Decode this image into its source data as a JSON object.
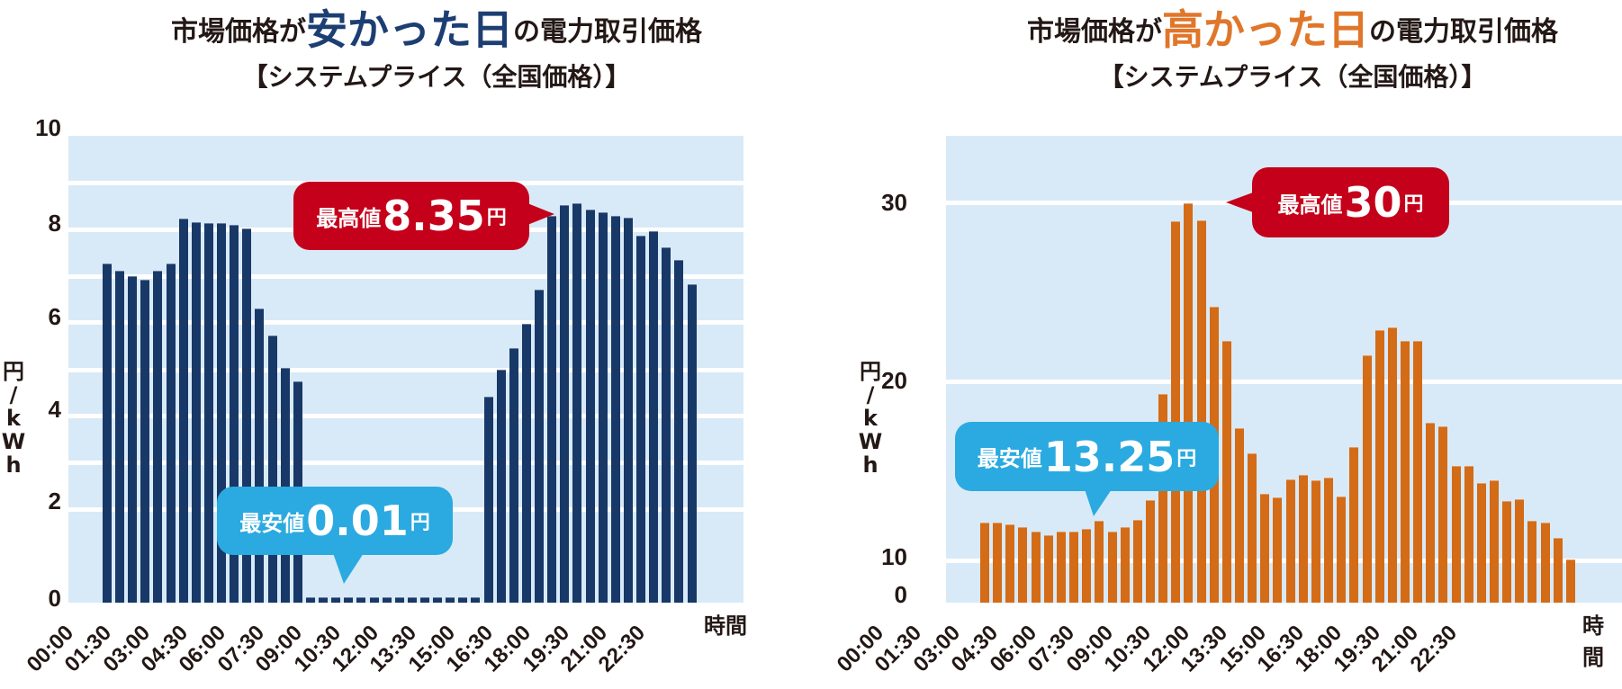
{
  "colors": {
    "plot_bg": "#d8eaf8",
    "grid": "#ffffff",
    "low_bar": "#183867",
    "high_bar": "#d36b17",
    "title_low_accent": "#1d3e72",
    "title_high_accent": "#e0762a",
    "max_bubble": "#c4001a",
    "min_bubble": "#2aaae0",
    "text": "#231815"
  },
  "left": {
    "title_prefix": "市場価格が",
    "title_accent": "安かった日",
    "title_suffix": "の電力取引価格",
    "subtitle": "【システムプライス（全国価格）】",
    "y_unit": [
      "円",
      "/",
      "k",
      "W",
      "h"
    ],
    "x_unit": "時間",
    "max_bubble": {
      "label": "最高値",
      "value": "8.35",
      "unit": "円"
    },
    "min_bubble": {
      "label": "最安値",
      "value": "0.01",
      "unit": "円"
    }
  },
  "right": {
    "title_prefix": "市場価格が",
    "title_accent": "高かった日",
    "title_suffix": "の電力取引価格",
    "subtitle": "【システムプライス（全国価格）】",
    "y_unit": [
      "円",
      "/",
      "k",
      "W",
      "h"
    ],
    "x_unit": "時間",
    "max_bubble": {
      "label": "最高値",
      "value": "30",
      "unit": "円"
    },
    "min_bubble": {
      "label": "最安値",
      "value": "13.25",
      "unit": "円"
    }
  },
  "chart_data": [
    {
      "type": "bar",
      "title": "市場価格が安かった日の電力取引価格【システムプライス（全国価格）】",
      "xlabel": "時間",
      "ylabel": "円/kWh",
      "ylim": [
        0,
        10
      ],
      "yticks": [
        0,
        2,
        4,
        6,
        8,
        10
      ],
      "grid": true,
      "xtick_labels": [
        "00:00",
        "01:30",
        "03:00",
        "04:30",
        "06:00",
        "07:30",
        "09:00",
        "10:30",
        "12:00",
        "13:30",
        "15:00",
        "16:30",
        "18:00",
        "19:30",
        "21:00",
        "22:30"
      ],
      "annotations": [
        {
          "text": "最高値8.35円",
          "value": 8.35
        },
        {
          "text": "最安値0.01円",
          "value": 0.01
        }
      ],
      "values": [
        7.08,
        6.94,
        6.82,
        6.75,
        6.93,
        7.08,
        8.02,
        7.95,
        7.93,
        7.93,
        7.9,
        7.81,
        6.15,
        5.59,
        4.9,
        4.62,
        0.01,
        0.01,
        0.01,
        0.01,
        0.01,
        0.01,
        0.01,
        0.01,
        0.01,
        0.01,
        0.01,
        0.01,
        0.01,
        0.01,
        4.3,
        4.87,
        5.31,
        5.83,
        6.54,
        8.08,
        8.3,
        8.35,
        8.22,
        8.15,
        8.08,
        8.05,
        7.66,
        7.77,
        7.43,
        7.16,
        6.66
      ]
    },
    {
      "type": "bar",
      "title": "市場価格が高かった日の電力取引価格【システムプライス（全国価格）】",
      "xlabel": "時間",
      "ylabel": "円/kWh",
      "ylim": [
        0,
        33
      ],
      "yticks": [
        0,
        10,
        20,
        30
      ],
      "axis_break": true,
      "grid": true,
      "xtick_labels": [
        "00:00",
        "01:30",
        "03:00",
        "04:30",
        "06:00",
        "07:30",
        "09:00",
        "10:30",
        "12:00",
        "13:30",
        "15:00",
        "16:30",
        "18:00",
        "19:30",
        "21:00",
        "22:30"
      ],
      "annotations": [
        {
          "text": "最高値30円",
          "value": 30
        },
        {
          "text": "最安値13.25円",
          "value": 13.25
        }
      ],
      "values": [
        15.0,
        14.98,
        14.91,
        14.77,
        14.56,
        14.4,
        14.56,
        14.59,
        14.7,
        15.09,
        14.56,
        14.8,
        15.13,
        16.06,
        21.02,
        29.14,
        30.0,
        29.18,
        25.13,
        23.51,
        19.43,
        18.25,
        16.35,
        16.17,
        17.01,
        17.25,
        16.97,
        17.11,
        16.23,
        18.53,
        22.84,
        24.02,
        24.17,
        23.51,
        23.51,
        19.68,
        19.51,
        17.64,
        17.64,
        16.84,
        16.97,
        16.0,
        16.08,
        15.08,
        15.01,
        14.27,
        13.25
      ]
    }
  ]
}
